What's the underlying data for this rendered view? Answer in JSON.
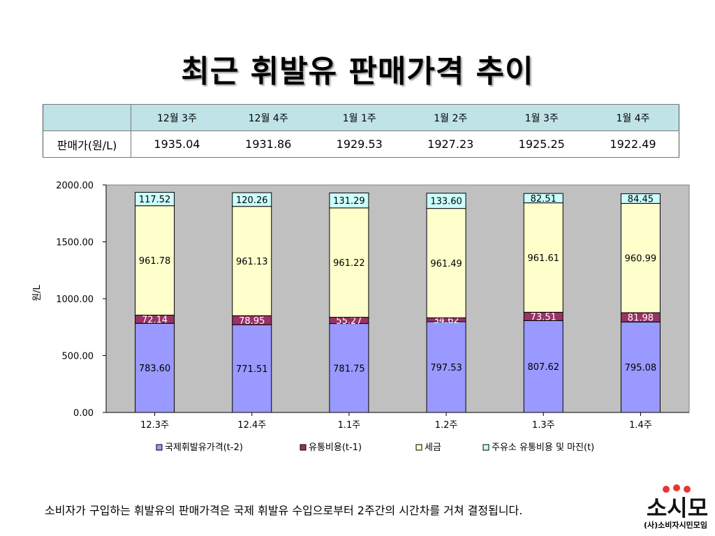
{
  "title": "최근 휘발유 판매가격 추이",
  "table": {
    "row_label": "판매가(원/L)",
    "headers": [
      "12월 3주",
      "12월 4주",
      "1월 1주",
      "1월 2주",
      "1월 3주",
      "1월 4주"
    ],
    "values": [
      "1935.04",
      "1931.86",
      "1929.53",
      "1927.23",
      "1925.25",
      "1922.49"
    ]
  },
  "chart_data": {
    "type": "bar",
    "stacked": true,
    "categories": [
      "12.3주",
      "12.4주",
      "1.1주",
      "1.2주",
      "1.3주",
      "1.4주"
    ],
    "ylabel": "원/L",
    "xlabel": "",
    "ylim": [
      0,
      2000
    ],
    "yticks": [
      0,
      500,
      1000,
      1500,
      2000
    ],
    "ytick_labels": [
      "0.00",
      "500.00",
      "1000.00",
      "1500.00",
      "2000.00"
    ],
    "grid": false,
    "legend_position": "bottom",
    "series": [
      {
        "name": "국제휘발유가격(t-2)",
        "color": "#9999ff",
        "label_color": "#000000",
        "values": [
          783.6,
          771.51,
          781.75,
          797.53,
          807.62,
          795.08
        ],
        "labels": [
          "783.60",
          "771.51",
          "781.75",
          "797.53",
          "807.62",
          "795.08"
        ]
      },
      {
        "name": "유통비용(t-1)",
        "color": "#993366",
        "label_color": "#ffffff",
        "values": [
          72.14,
          78.95,
          55.27,
          34.62,
          73.51,
          81.98
        ],
        "labels": [
          "72.14",
          "78.95",
          "55.27",
          "34.62",
          "73.51",
          "81.98"
        ]
      },
      {
        "name": "세금",
        "color": "#ffffcc",
        "label_color": "#000000",
        "values": [
          961.78,
          961.13,
          961.22,
          961.49,
          961.61,
          960.99
        ],
        "labels": [
          "961.78",
          "961.13",
          "961.22",
          "961.49",
          "961.61",
          "960.99"
        ]
      },
      {
        "name": "주유소 유통비용 및 마진(t)",
        "color": "#ccffff",
        "label_color": "#000000",
        "values": [
          117.52,
          120.26,
          131.29,
          133.6,
          82.51,
          84.45
        ],
        "labels": [
          "117.52",
          "120.26",
          "131.29",
          "133.60",
          "82.51",
          "84.45"
        ]
      }
    ]
  },
  "footer": {
    "text": "소비자가 구입하는 휘발유의 판매가격은 국제 휘발유 수입으로부터 2주간의 시간차를 거쳐 결정됩니다.",
    "logo_text": "소시모",
    "logo_caption": "(사)소비자시민모임"
  }
}
